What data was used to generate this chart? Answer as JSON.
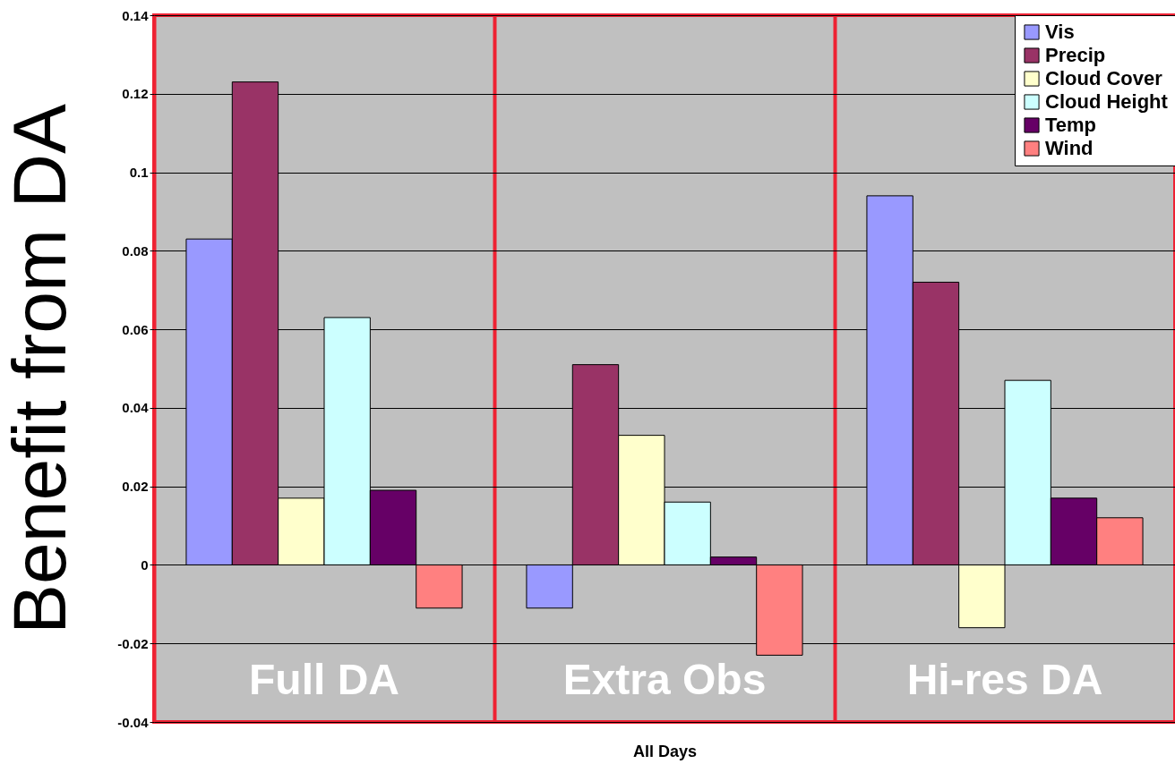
{
  "chart_data": {
    "type": "bar",
    "xlabel": "All Days",
    "ylabel": "Benefit from DA",
    "categories": [
      "Full DA",
      "Extra Obs",
      "Hi-res DA"
    ],
    "series": [
      {
        "name": "Vis",
        "color": "#9999ff",
        "values": [
          0.083,
          -0.011,
          0.094
        ]
      },
      {
        "name": "Precip",
        "color": "#993366",
        "values": [
          0.123,
          0.051,
          0.072
        ]
      },
      {
        "name": "Cloud Cover",
        "color": "#ffffcc",
        "values": [
          0.017,
          0.033,
          -0.016
        ]
      },
      {
        "name": "Cloud Height",
        "color": "#ccffff",
        "values": [
          0.063,
          0.016,
          0.047
        ]
      },
      {
        "name": "Temp",
        "color": "#660066",
        "values": [
          0.019,
          0.002,
          0.017
        ]
      },
      {
        "name": "Wind",
        "color": "#ff8080",
        "values": [
          -0.011,
          -0.023,
          0.012
        ]
      }
    ],
    "ylim": [
      -0.04,
      0.14
    ],
    "yticks": [
      -0.04,
      -0.02,
      0,
      0.02,
      0.04,
      0.06,
      0.08,
      0.1,
      0.12,
      0.14
    ],
    "grid": true,
    "legend": "top right"
  }
}
